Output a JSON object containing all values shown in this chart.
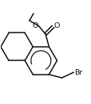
{
  "bg_color": "#ffffff",
  "bond_color": "#111111",
  "atom_color": "#111111",
  "line_width": 1.1,
  "font_size": 6.8,
  "figsize": [
    1.15,
    1.31
  ],
  "dpi": 100,
  "xlim": [
    -0.05,
    1.05
  ],
  "ylim": [
    -0.05,
    1.1
  ]
}
